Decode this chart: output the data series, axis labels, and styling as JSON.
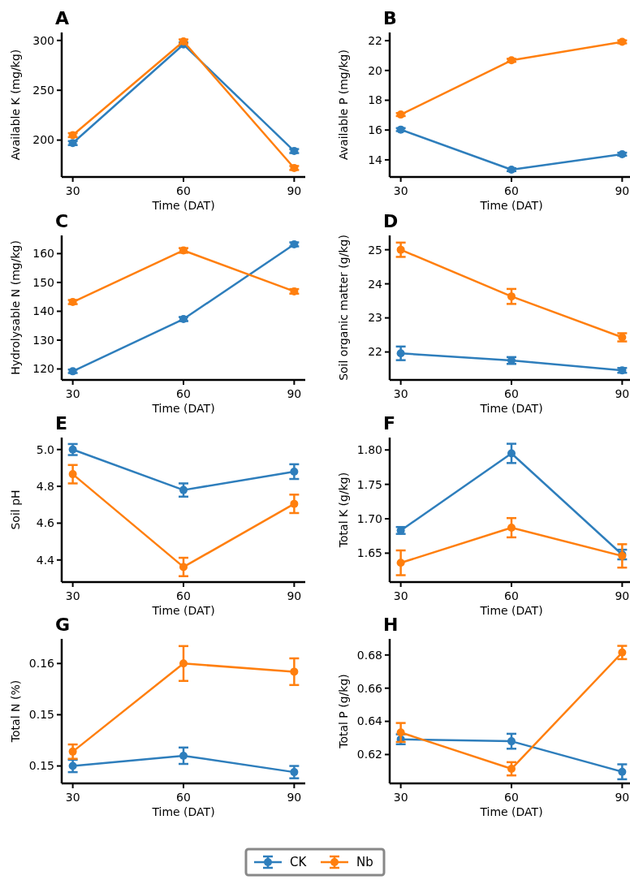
{
  "chart_data": [
    {
      "type": "line",
      "title": "A",
      "xlabel": "Time (DAT)",
      "ylabel": "Available K (mg/kg)",
      "x": [
        30,
        60,
        90
      ],
      "xlim": [
        27,
        93
      ],
      "xticks": [
        30,
        60,
        90
      ],
      "ylim": [
        163,
        308
      ],
      "yticks": [
        200,
        250,
        300
      ],
      "marker": "circle",
      "line_style": "solid",
      "legend": "bottom",
      "series": [
        {
          "name": "CK",
          "color": "#2e7ebc",
          "values": [
            197,
            296,
            189
          ],
          "errors": [
            2,
            2,
            2
          ]
        },
        {
          "name": "Nb",
          "color": "#ff7f0e",
          "values": [
            205,
            299,
            172
          ],
          "errors": [
            2,
            2,
            2
          ]
        }
      ]
    },
    {
      "type": "line",
      "title": "B",
      "xlabel": "Time (DAT)",
      "ylabel": "Available P (mg/kg)",
      "x": [
        30,
        60,
        90
      ],
      "xlim": [
        27,
        93
      ],
      "xticks": [
        30,
        60,
        90
      ],
      "ylim": [
        12.85,
        22.55
      ],
      "yticks": [
        14,
        16,
        18,
        20,
        22
      ],
      "marker": "circle",
      "line_style": "solid",
      "series": [
        {
          "color": "#2e7ebc",
          "values": [
            16.03,
            13.34,
            14.38
          ],
          "errors": [
            0.1,
            0.1,
            0.1
          ]
        },
        {
          "color": "#ff7f0e",
          "values": [
            17.04,
            20.68,
            21.92
          ],
          "errors": [
            0.1,
            0.1,
            0.1
          ]
        }
      ]
    },
    {
      "type": "line",
      "title": "C",
      "xlabel": "Time (DAT)",
      "ylabel": "Hydrolysable N (mg/kg)",
      "x": [
        30,
        60,
        90
      ],
      "xlim": [
        27,
        93
      ],
      "xticks": [
        30,
        60,
        90
      ],
      "ylim": [
        116.2,
        166.3
      ],
      "yticks": [
        120,
        130,
        140,
        150,
        160
      ],
      "marker": "circle",
      "line_style": "solid",
      "series": [
        {
          "color": "#2e7ebc",
          "values": [
            119.2,
            137.3,
            163.2
          ],
          "errors": [
            0.6,
            0.7,
            0.7
          ]
        },
        {
          "color": "#ff7f0e",
          "values": [
            143.2,
            161.1,
            146.9
          ],
          "errors": [
            0.7,
            0.8,
            0.8
          ]
        }
      ]
    },
    {
      "type": "line",
      "title": "D",
      "xlabel": "Time (DAT)",
      "ylabel": "Soil organic matter (g/kg)",
      "x": [
        30,
        60,
        90
      ],
      "xlim": [
        27,
        93
      ],
      "xticks": [
        30,
        60,
        90
      ],
      "ylim": [
        21.18,
        25.42
      ],
      "yticks": [
        22,
        23,
        24,
        25
      ],
      "marker": "circle",
      "line_style": "solid",
      "series": [
        {
          "color": "#2e7ebc",
          "values": [
            21.96,
            21.75,
            21.46
          ],
          "errors": [
            0.2,
            0.1,
            0.07
          ]
        },
        {
          "color": "#ff7f0e",
          "values": [
            25.0,
            23.63,
            22.43
          ],
          "errors": [
            0.21,
            0.22,
            0.12
          ]
        }
      ]
    },
    {
      "type": "line",
      "title": "E",
      "xlabel": "Time (DAT)",
      "ylabel": "Soil pH",
      "x": [
        30,
        60,
        90
      ],
      "xlim": [
        27,
        93
      ],
      "xticks": [
        30,
        60,
        90
      ],
      "ylim": [
        4.28,
        5.065
      ],
      "yticks": [
        {
          "value": 4.4,
          "label": "4.4"
        },
        {
          "value": 4.6,
          "label": "4.6"
        },
        {
          "value": 4.8,
          "label": "4.8"
        },
        {
          "value": 5.0,
          "label": "5.0"
        }
      ],
      "marker": "circle",
      "line_style": "solid",
      "series": [
        {
          "color": "#2e7ebc",
          "values": [
            5.0,
            4.78,
            4.88
          ],
          "errors": [
            0.03,
            0.036,
            0.04
          ]
        },
        {
          "color": "#ff7f0e",
          "values": [
            4.866,
            4.362,
            4.705
          ],
          "errors": [
            0.05,
            0.05,
            0.05
          ]
        }
      ]
    },
    {
      "type": "line",
      "title": "F",
      "xlabel": "Time (DAT)",
      "ylabel": "Total K (g/kg)",
      "x": [
        30,
        60,
        90
      ],
      "xlim": [
        27,
        93
      ],
      "xticks": [
        30,
        60,
        90
      ],
      "ylim": [
        1.608,
        1.818
      ],
      "yticks": [
        {
          "value": 1.65,
          "label": "1.65"
        },
        {
          "value": 1.7,
          "label": "1.70"
        },
        {
          "value": 1.75,
          "label": "1.75"
        },
        {
          "value": 1.8,
          "label": "1.80"
        }
      ],
      "marker": "circle",
      "line_style": "solid",
      "series": [
        {
          "color": "#2e7ebc",
          "values": [
            1.683,
            1.795,
            1.648
          ],
          "errors": [
            0.005,
            0.014,
            0.007
          ]
        },
        {
          "color": "#ff7f0e",
          "values": [
            1.636,
            1.687,
            1.646
          ],
          "errors": [
            0.018,
            0.014,
            0.017
          ]
        }
      ]
    },
    {
      "type": "line",
      "title": "G",
      "xlabel": "Time (DAT)",
      "ylabel": "Total N (%)",
      "x": [
        30,
        60,
        90
      ],
      "xlim": [
        27,
        93
      ],
      "xticks": [
        30,
        60,
        90
      ],
      "ylim": [
        0.1433,
        0.1574
      ],
      "yticks": [
        {
          "value": 0.145,
          "label": "0.15"
        },
        {
          "value": 0.15,
          "label": "0.15"
        },
        {
          "value": 0.155,
          "label": "0.16"
        }
      ],
      "marker": "circle",
      "line_style": "solid",
      "series": [
        {
          "color": "#2e7ebc",
          "values": [
            0.145,
            0.146,
            0.1444
          ],
          "errors": [
            0.0006,
            0.0008,
            0.0006
          ]
        },
        {
          "color": "#ff7f0e",
          "values": [
            0.1464,
            0.155,
            0.1542
          ],
          "errors": [
            0.0007,
            0.0017,
            0.0013
          ]
        }
      ]
    },
    {
      "type": "line",
      "title": "H",
      "xlabel": "Time (DAT)",
      "ylabel": "Total P (g/kg)",
      "x": [
        30,
        60,
        90
      ],
      "xlim": [
        27,
        93
      ],
      "xticks": [
        30,
        60,
        90
      ],
      "ylim": [
        0.6026,
        0.6897
      ],
      "yticks": [
        {
          "value": 0.62,
          "label": "0.62"
        },
        {
          "value": 0.64,
          "label": "0.64"
        },
        {
          "value": 0.66,
          "label": "0.66"
        },
        {
          "value": 0.68,
          "label": "0.68"
        }
      ],
      "marker": "circle",
      "line_style": "solid",
      "series": [
        {
          "color": "#2e7ebc",
          "values": [
            0.6292,
            0.628,
            0.6096
          ],
          "errors": [
            0.003,
            0.0045,
            0.0045
          ]
        },
        {
          "color": "#ff7f0e",
          "values": [
            0.6333,
            0.6114,
            0.6815
          ],
          "errors": [
            0.0057,
            0.004,
            0.004
          ]
        }
      ]
    }
  ]
}
